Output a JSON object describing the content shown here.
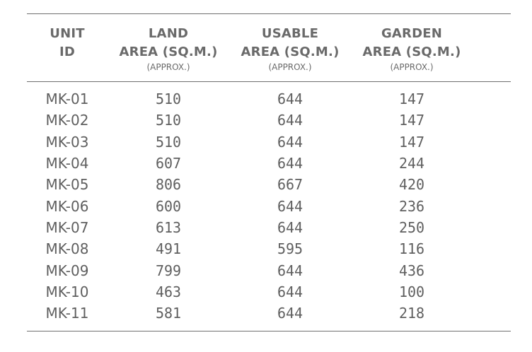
{
  "table": {
    "columns": [
      {
        "lines": [
          "UNIT",
          "ID"
        ],
        "sub": ""
      },
      {
        "lines": [
          "LAND",
          "AREA (SQ.M.)"
        ],
        "sub": "(APPROX.)"
      },
      {
        "lines": [
          "USABLE",
          "AREA (SQ.M.)"
        ],
        "sub": "(APPROX.)"
      },
      {
        "lines": [
          "GARDEN",
          "AREA (SQ.M.)"
        ],
        "sub": "(APPROX.)"
      }
    ],
    "rows": [
      [
        "MK-01",
        "510",
        "644",
        "147"
      ],
      [
        "MK-02",
        "510",
        "644",
        "147"
      ],
      [
        "MK-03",
        "510",
        "644",
        "147"
      ],
      [
        "MK-04",
        "607",
        "644",
        "244"
      ],
      [
        "MK-05",
        "806",
        "667",
        "420"
      ],
      [
        "MK-06",
        "600",
        "644",
        "236"
      ],
      [
        "MK-07",
        "613",
        "644",
        "250"
      ],
      [
        "MK-08",
        "491",
        "595",
        "116"
      ],
      [
        "MK-09",
        "799",
        "644",
        "436"
      ],
      [
        "MK-10",
        "463",
        "644",
        "100"
      ],
      [
        "MK-11",
        "581",
        "644",
        "218"
      ]
    ]
  }
}
